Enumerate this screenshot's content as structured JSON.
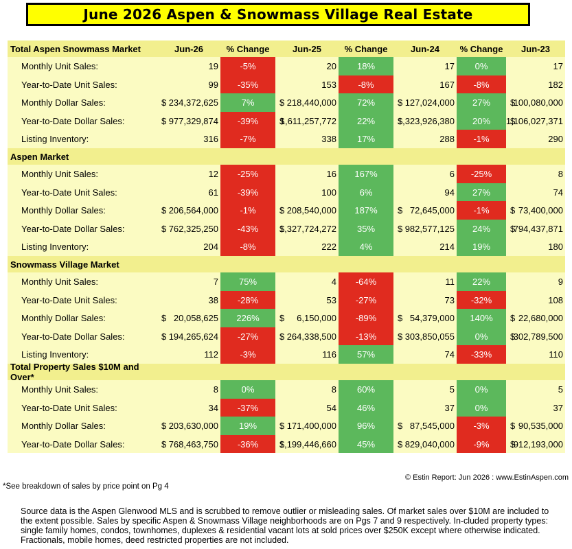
{
  "title": "June 2026 Aspen & Snowmass Village Real Estate",
  "columns": [
    "Jun-26",
    "% Change",
    "Jun-25",
    "% Change",
    "Jun-24",
    "% Change",
    "Jun-23"
  ],
  "sections": [
    {
      "name": "Total Aspen Snowmass Market",
      "rows": [
        {
          "label": "Monthly Unit Sales:",
          "v26": "19",
          "p1": "-5%",
          "v25": "20",
          "p2": "18%",
          "v24": "17",
          "p3": "0%",
          "v23": "17"
        },
        {
          "label": "Year-to-Date Unit Sales:",
          "v26": "99",
          "p1": "-35%",
          "v25": "153",
          "p2": "-8%",
          "v24": "167",
          "p3": "-8%",
          "v23": "182"
        },
        {
          "label": "Monthly Dollar Sales:",
          "v26": "234,372,625",
          "p1": "7%",
          "v25": "218,440,000",
          "p2": "72%",
          "v24": "127,024,000",
          "p3": "27%",
          "v23": "100,080,000"
        },
        {
          "label": "Year-to-Date Dollar Sales:",
          "v26": "977,329,874",
          "p1": "-39%",
          "v25": "1,611,257,772",
          "p2": "22%",
          "v24": "1,323,926,380",
          "p3": "20%",
          "v23": "1,106,027,371"
        },
        {
          "label": "Listing Inventory:",
          "v26": "316",
          "p1": "-7%",
          "v25": "338",
          "p2": "17%",
          "v24": "288",
          "p3": "-1%",
          "v23": "290"
        }
      ]
    },
    {
      "name": "Aspen Market",
      "rows": [
        {
          "label": "Monthly Unit Sales:",
          "v26": "12",
          "p1": "-25%",
          "v25": "16",
          "p2": "167%",
          "v24": "6",
          "p3": "-25%",
          "v23": "8"
        },
        {
          "label": "Year-to-Date Unit Sales:",
          "v26": "61",
          "p1": "-39%",
          "v25": "100",
          "p2": "6%",
          "v24": "94",
          "p3": "27%",
          "v23": "74"
        },
        {
          "label": "Monthly Dollar Sales:",
          "v26": "206,564,000",
          "p1": "-1%",
          "v25": "208,540,000",
          "p2": "187%",
          "v24": "72,645,000",
          "p3": "-1%",
          "v23": "73,400,000"
        },
        {
          "label": "Year-to-Date Dollar Sales:",
          "v26": "762,325,250",
          "p1": "-43%",
          "v25": "1,327,724,272",
          "p2": "35%",
          "v24": "982,577,125",
          "p3": "24%",
          "v23": "794,437,871"
        },
        {
          "label": "Listing Inventory:",
          "v26": "204",
          "p1": "-8%",
          "v25": "222",
          "p2": "4%",
          "v24": "214",
          "p3": "19%",
          "v23": "180"
        }
      ]
    },
    {
      "name": "Snowmass Village Market",
      "rows": [
        {
          "label": "Monthly Unit Sales:",
          "v26": "7",
          "p1": "75%",
          "v25": "4",
          "p2": "-64%",
          "v24": "11",
          "p3": "22%",
          "v23": "9"
        },
        {
          "label": "Year-to-Date Unit Sales:",
          "v26": "38",
          "p1": "-28%",
          "v25": "53",
          "p2": "-27%",
          "v24": "73",
          "p3": "-32%",
          "v23": "108"
        },
        {
          "label": "Monthly Dollar Sales:",
          "v26": "20,058,625",
          "p1": "226%",
          "v25": "6,150,000",
          "p2": "-89%",
          "v24": "54,379,000",
          "p3": "140%",
          "v23": "22,680,000"
        },
        {
          "label": "Year-to-Date Dollar Sales:",
          "v26": "194,265,624",
          "p1": "-27%",
          "v25": "264,338,500",
          "p2": "-13%",
          "v24": "303,850,055",
          "p3": "0%",
          "v23": "302,789,500"
        },
        {
          "label": "Listing Inventory:",
          "v26": "112",
          "p1": "-3%",
          "v25": "116",
          "p2": "57%",
          "v24": "74",
          "p3": "-33%",
          "v23": "110"
        }
      ]
    },
    {
      "name": "Total Property Sales $10M and Over*",
      "rows": [
        {
          "label": "Monthly Unit Sales:",
          "v26": "8",
          "p1": "0%",
          "v25": "8",
          "p2": "60%",
          "v24": "5",
          "p3": "0%",
          "v23": "5"
        },
        {
          "label": "Year-to-Date Unit Sales:",
          "v26": "34",
          "p1": "-37%",
          "v25": "54",
          "p2": "46%",
          "v24": "37",
          "p3": "0%",
          "v23": "37"
        },
        {
          "label": "Monthly Dollar Sales:",
          "v26": "203,630,000",
          "p1": "19%",
          "v25": "171,400,000",
          "p2": "96%",
          "v24": "87,545,000",
          "p3": "-3%",
          "v23": "90,535,000"
        },
        {
          "label": "Year-to-Date Dollar Sales:",
          "v26": "768,463,750",
          "p1": "-36%",
          "v25": "1,199,446,660",
          "p2": "45%",
          "v24": "829,040,000",
          "p3": "-9%",
          "v23": "912,193,000"
        }
      ]
    }
  ],
  "dollar_sign": "$",
  "colors": {
    "positive": "#5cb85c",
    "negative": "#e02b1f",
    "title_bg": "#ffff00",
    "row_bg": "#fbfbc2"
  },
  "copyright": "© Estin Report: Jun 2026 : www.EstinAspen.com",
  "footnote": "*See breakdown of sales by price point on Pg 4",
  "source": "Source data is the Aspen Glenwood MLS and is scrubbed to remove outlier or misleading sales. Of market sales over $10M are included to the extent possible. Sales by specific Aspen & Snowmass Village neighborhoods are on Pgs 7 and 9 respectively. In-cluded property types: single family homes, condos, townhomes, duplexes & residential vacant lots at sold prices over $250K except where otherwise indicated. Fractionals, mobile homes, deed restricted properties are not included."
}
